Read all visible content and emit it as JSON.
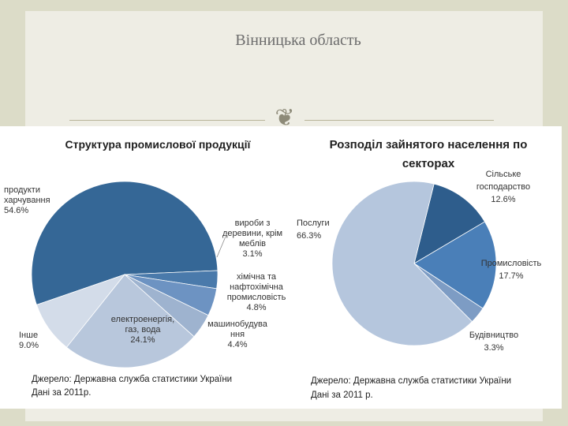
{
  "slide": {
    "title": "Вінницька область",
    "ornament_glyph": "❦"
  },
  "chart_data": [
    {
      "type": "pie",
      "title": "Структура промислової продукції",
      "slices": [
        {
          "label_lines": [
            "продукти",
            "харчування",
            "54.6%"
          ],
          "value": 54.6,
          "color": "#356796"
        },
        {
          "label_lines": [
            "вироби з",
            "деревини, крім",
            "меблів",
            "3.1%"
          ],
          "value": 3.1,
          "color": "#4a7aab"
        },
        {
          "label_lines": [
            "хімічна та",
            "нафтохімічна",
            "промисловість",
            "4.8%"
          ],
          "value": 4.8,
          "color": "#6d93c2"
        },
        {
          "label_lines": [
            "машинобудува",
            "ння",
            "4.4%"
          ],
          "value": 4.4,
          "color": "#9eb3cf"
        },
        {
          "label_lines": [
            "електроенергія,",
            "газ, вода",
            "24.1%"
          ],
          "value": 24.1,
          "color": "#b8c7dc"
        },
        {
          "label_lines": [
            "Інше",
            "9.0%"
          ],
          "value": 9.0,
          "color": "#d3dce9"
        }
      ],
      "source_lines": [
        "Джерело: Державна служба статистики України",
        "Дані за 2011р."
      ]
    },
    {
      "type": "pie",
      "title_lines": [
        "Розподіл зайнятого населення по",
        "секторах"
      ],
      "slices": [
        {
          "label_lines": [
            "Сільське",
            "господарство",
            "12.6%"
          ],
          "value": 12.6,
          "color": "#2e5d8c"
        },
        {
          "label_lines": [
            "Промисловість",
            "17.7%"
          ],
          "value": 17.7,
          "color": "#4a7fb8"
        },
        {
          "label_lines": [
            "Будівництво",
            "3.3%"
          ],
          "value": 3.3,
          "color": "#7d9cc4"
        },
        {
          "label_lines": [
            "Послуги",
            "66.3%"
          ],
          "value": 66.3,
          "color": "#b5c6dd"
        }
      ],
      "source_lines": [
        "Джерело: Державна служба статистики України",
        "Дані за 2011 р."
      ]
    }
  ]
}
